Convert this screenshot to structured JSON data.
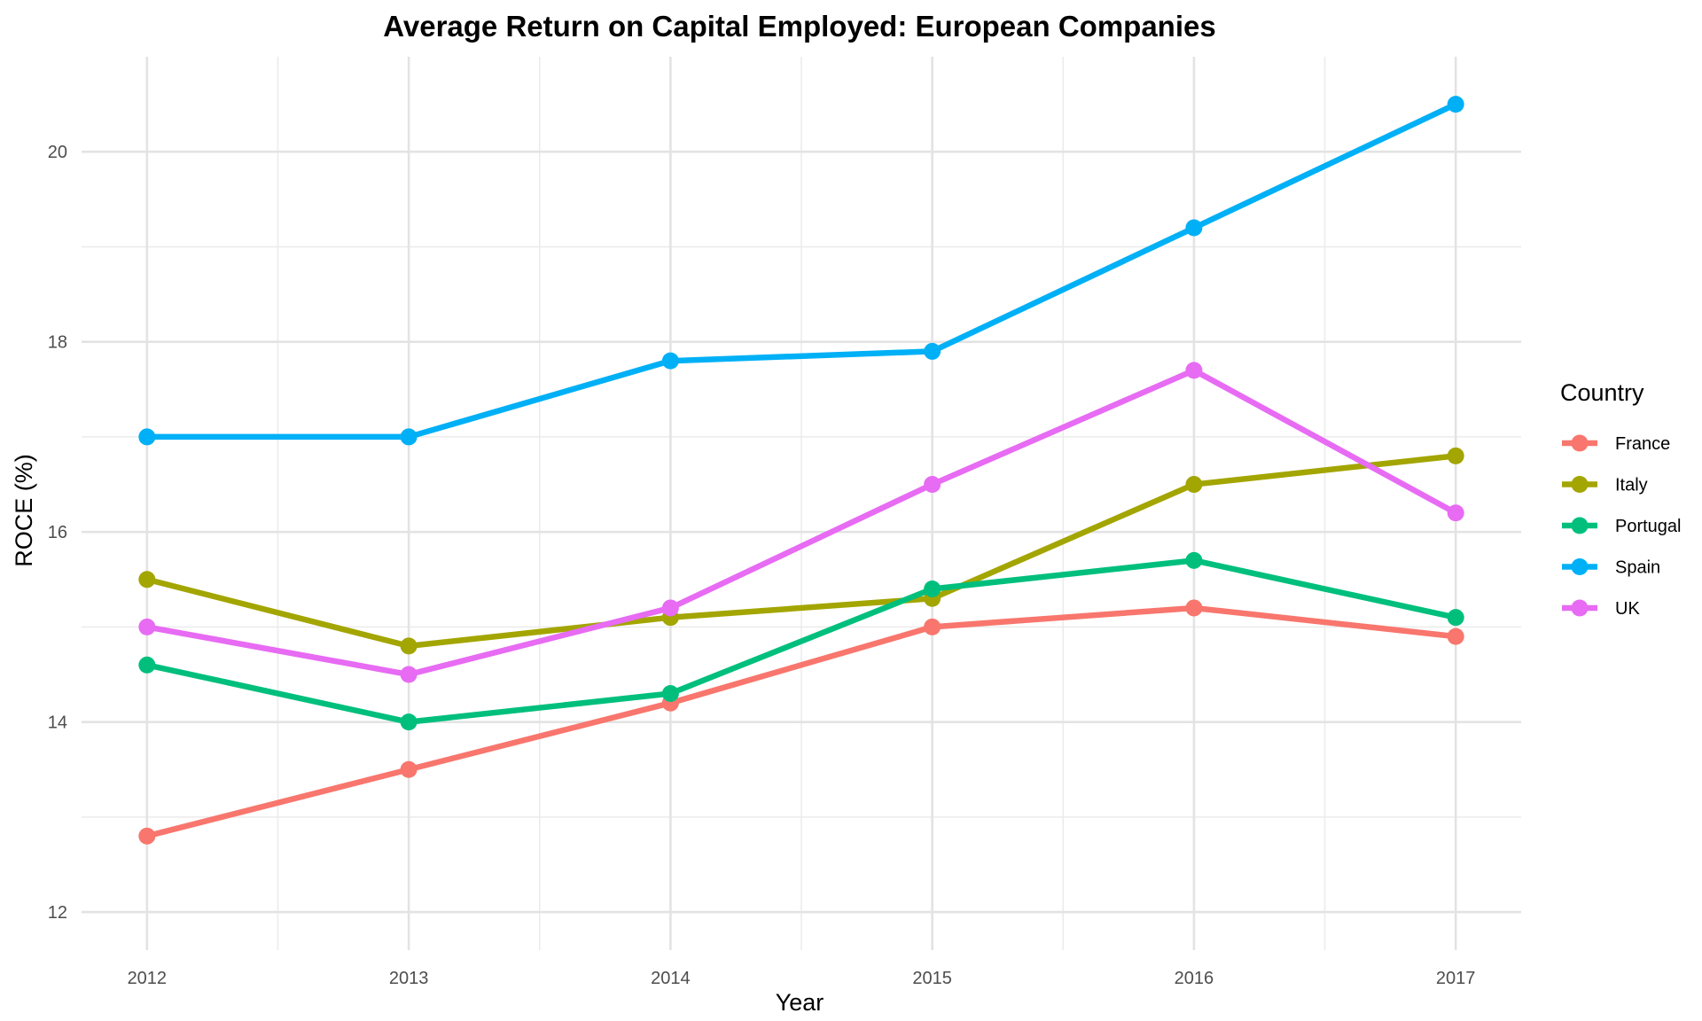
{
  "chart_data": {
    "type": "line",
    "title": "Average Return on Capital Employed: European Companies",
    "xlabel": "Year",
    "ylabel": "ROCE (%)",
    "x": [
      2012,
      2013,
      2014,
      2015,
      2016,
      2017
    ],
    "x_tick_labels": [
      "2012",
      "2013",
      "2014",
      "2015",
      "2016",
      "2017"
    ],
    "y_ticks": [
      12,
      14,
      16,
      18,
      20
    ],
    "y_tick_labels": [
      "12",
      "14",
      "16",
      "18",
      "20"
    ],
    "xlim": [
      2011.75,
      2017.25
    ],
    "ylim": [
      11.6,
      21.0
    ],
    "grid": true,
    "markers": true,
    "legend": {
      "title": "Country",
      "position": "right"
    },
    "series": [
      {
        "name": "France",
        "color": "#F8766D",
        "values": [
          12.8,
          13.5,
          14.2,
          15.0,
          15.2,
          14.9
        ]
      },
      {
        "name": "Italy",
        "color": "#A3A500",
        "values": [
          15.5,
          14.8,
          15.1,
          15.3,
          16.5,
          16.8
        ]
      },
      {
        "name": "Portugal",
        "color": "#00BF7D",
        "values": [
          14.6,
          14.0,
          14.3,
          15.4,
          15.7,
          15.1
        ]
      },
      {
        "name": "Spain",
        "color": "#00B0F6",
        "values": [
          17.0,
          17.0,
          17.8,
          17.9,
          19.2,
          20.5
        ]
      },
      {
        "name": "UK",
        "color": "#E76BF3",
        "values": [
          15.0,
          14.5,
          15.2,
          16.5,
          17.7,
          16.2
        ]
      }
    ]
  }
}
